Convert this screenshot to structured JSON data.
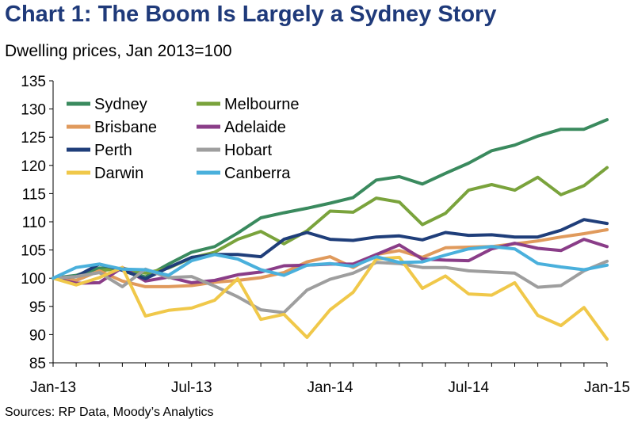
{
  "chart_data": {
    "type": "line",
    "title": "Chart 1: The Boom Is Largely a Sydney Story",
    "subtitle": "Dwelling prices, Jan 2013=100",
    "source": "Sources: RP Data, Moody’s Analytics",
    "ylim": [
      85,
      135
    ],
    "yticks": [
      85,
      90,
      95,
      100,
      105,
      110,
      115,
      120,
      125,
      130,
      135
    ],
    "x": [
      "Jan-13",
      "Feb-13",
      "Mar-13",
      "Apr-13",
      "May-13",
      "Jun-13",
      "Jul-13",
      "Aug-13",
      "Sep-13",
      "Oct-13",
      "Nov-13",
      "Dec-13",
      "Jan-14",
      "Feb-14",
      "Mar-14",
      "Apr-14",
      "May-14",
      "Jun-14",
      "Jul-14",
      "Aug-14",
      "Sep-14",
      "Oct-14",
      "Nov-14",
      "Dec-14",
      "Jan-15"
    ],
    "xtick_labels": [
      "Jan-13",
      "Jul-13",
      "Jan-14",
      "Jul-14",
      "Jan-15"
    ],
    "xtick_positions": [
      0,
      6,
      12,
      18,
      24
    ],
    "grid": false,
    "legend_position": "top-left",
    "series": [
      {
        "name": "Sydney",
        "color": "#3a8a5e",
        "values": [
          100,
          100.5,
          101.8,
          101.6,
          100.2,
          102.5,
          104.6,
          105.6,
          108.0,
          110.7,
          111.6,
          112.4,
          113.3,
          114.3,
          117.4,
          118.0,
          116.7,
          118.6,
          120.4,
          122.6,
          123.6,
          125.2,
          126.4,
          126.4,
          128.1
        ]
      },
      {
        "name": "Melbourne",
        "color": "#7aa33c",
        "values": [
          100,
          99.6,
          101.3,
          101.8,
          100.9,
          101.8,
          103.6,
          104.6,
          106.9,
          108.3,
          106.1,
          108.4,
          111.9,
          111.7,
          114.2,
          113.5,
          109.5,
          111.5,
          115.6,
          116.6,
          115.6,
          117.9,
          114.8,
          116.4,
          119.6
        ]
      },
      {
        "name": "Brisbane",
        "color": "#e09a5c",
        "values": [
          100,
          99.6,
          101.3,
          99.5,
          98.5,
          98.5,
          98.7,
          99.3,
          99.6,
          100.1,
          101.0,
          102.9,
          103.8,
          101.9,
          104.2,
          104.9,
          103.7,
          105.4,
          105.5,
          105.6,
          106.1,
          106.6,
          107.3,
          107.9,
          108.6
        ]
      },
      {
        "name": "Adelaide",
        "color": "#8a3d88",
        "values": [
          100,
          99.1,
          99.2,
          101.9,
          99.5,
          100.2,
          99.2,
          99.6,
          100.6,
          101.1,
          102.2,
          102.3,
          102.5,
          102.5,
          104.2,
          105.9,
          103.4,
          103.2,
          103.1,
          105.2,
          106.2,
          105.3,
          104.9,
          106.9,
          105.6
        ]
      },
      {
        "name": "Perth",
        "color": "#1f3e7a",
        "values": [
          100,
          100.3,
          102.5,
          101.4,
          99.9,
          101.9,
          103.7,
          104.2,
          104.2,
          103.8,
          106.9,
          108.1,
          106.9,
          106.7,
          107.3,
          107.5,
          106.8,
          108.1,
          107.6,
          107.7,
          107.3,
          107.3,
          108.5,
          110.4,
          109.7
        ]
      },
      {
        "name": "Hobart",
        "color": "#9e9e9e",
        "values": [
          100,
          100.3,
          101.0,
          98.5,
          101.6,
          100.1,
          100.3,
          98.6,
          96.7,
          94.4,
          93.9,
          97.9,
          99.8,
          100.9,
          102.8,
          102.6,
          101.9,
          101.9,
          101.3,
          101.1,
          100.9,
          98.4,
          98.7,
          101.3,
          103.0
        ]
      },
      {
        "name": "Darwin",
        "color": "#f0c84a",
        "values": [
          100,
          98.8,
          100.1,
          101.9,
          93.3,
          94.3,
          94.7,
          96.1,
          99.9,
          92.7,
          93.6,
          89.5,
          94.4,
          97.5,
          103.4,
          103.7,
          98.2,
          100.4,
          97.2,
          97.0,
          99.2,
          93.4,
          91.6,
          94.8,
          89.2
        ]
      },
      {
        "name": "Canberra",
        "color": "#4ab0dc",
        "values": [
          100,
          101.9,
          102.5,
          101.6,
          101.5,
          100.5,
          103.1,
          104.2,
          103.4,
          101.5,
          100.5,
          102.3,
          102.6,
          102.1,
          103.8,
          102.8,
          102.9,
          104.1,
          105.2,
          105.6,
          105.2,
          102.6,
          102.0,
          101.5,
          102.3
        ]
      }
    ]
  }
}
